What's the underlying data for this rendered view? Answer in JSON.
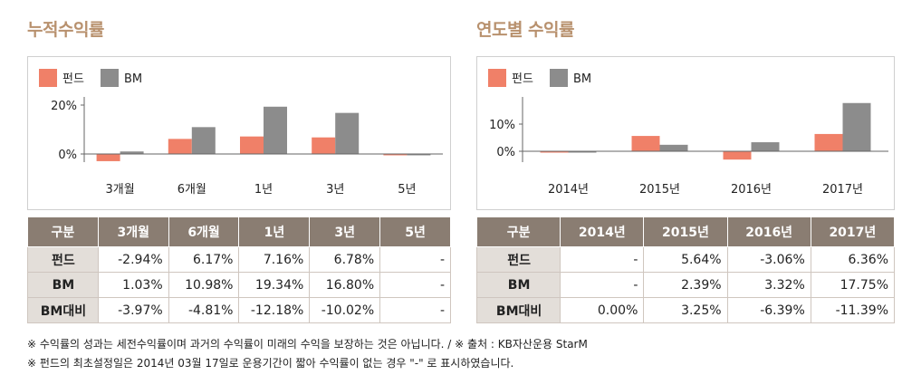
{
  "chart_data": [
    {
      "type": "bar",
      "title": "누적수익률",
      "categories": [
        "3개월",
        "6개월",
        "1년",
        "3년",
        "5년"
      ],
      "series": [
        {
          "name": "펀드",
          "values": [
            -2.94,
            6.17,
            7.16,
            6.78,
            -0.5
          ]
        },
        {
          "name": "BM",
          "values": [
            1.03,
            10.98,
            19.34,
            16.8,
            -0.5
          ]
        }
      ],
      "yticks": [
        "0%",
        "20%"
      ],
      "ylim": [
        -5,
        25
      ],
      "legend": "top-left",
      "colors": {
        "fund": "#f08068",
        "bm": "#8c8c8c"
      }
    },
    {
      "type": "bar",
      "title": "연도별 수익률",
      "categories": [
        "2014년",
        "2015년",
        "2016년",
        "2017년"
      ],
      "series": [
        {
          "name": "펀드",
          "values": [
            -0.3,
            5.64,
            -3.06,
            6.36
          ]
        },
        {
          "name": "BM",
          "values": [
            -0.3,
            2.39,
            3.32,
            17.75
          ]
        }
      ],
      "yticks": [
        "0%",
        "10%"
      ],
      "ylim": [
        -5,
        20
      ],
      "legend": "top-left",
      "colors": {
        "fund": "#f08068",
        "bm": "#8c8c8c"
      }
    }
  ],
  "tables": {
    "cumulative": {
      "header": [
        "구분",
        "3개월",
        "6개월",
        "1년",
        "3년",
        "5년"
      ],
      "rows": [
        {
          "label": "펀드",
          "cells": [
            "-2.94%",
            "6.17%",
            "7.16%",
            "6.78%",
            "-"
          ]
        },
        {
          "label": "BM",
          "cells": [
            "1.03%",
            "10.98%",
            "19.34%",
            "16.80%",
            "-"
          ]
        },
        {
          "label": "BM대비",
          "cells": [
            "-3.97%",
            "-4.81%",
            "-12.18%",
            "-10.02%",
            "-"
          ]
        }
      ]
    },
    "annual": {
      "header": [
        "구분",
        "2014년",
        "2015년",
        "2016년",
        "2017년"
      ],
      "rows": [
        {
          "label": "펀드",
          "cells": [
            "-",
            "5.64%",
            "-3.06%",
            "6.36%"
          ]
        },
        {
          "label": "BM",
          "cells": [
            "-",
            "2.39%",
            "3.32%",
            "17.75%"
          ]
        },
        {
          "label": "BM대비",
          "cells": [
            "0.00%",
            "3.25%",
            "-6.39%",
            "-11.39%"
          ]
        }
      ]
    }
  },
  "notes": {
    "line1": "※ 수익률의 성과는 세전수익률이며 과거의 수익률이 미래의 수익을 보장하는 것은 아닙니다. / ※ 출처 : KB자산운용 StarM",
    "line2": "※ 펀드의 최초설정일은 2014년 03월 17일로 운용기간이 짧아 수익률이 없는 경우 \"-\" 로 표시하였습니다."
  }
}
